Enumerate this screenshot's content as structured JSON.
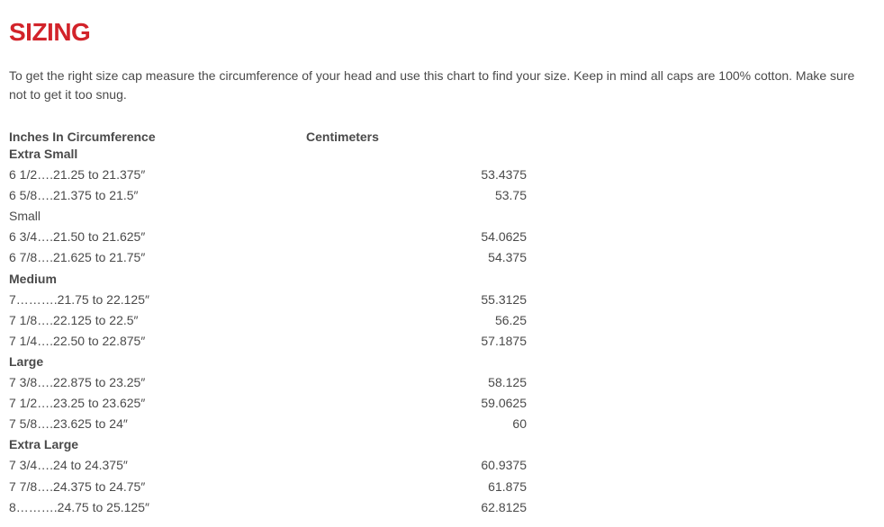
{
  "heading": "SIZING",
  "heading_color": "#d2232a",
  "intro": "To get the right size cap measure the circumference of your head and use this chart to find your size. Keep in mind all caps are 100% cotton. Make sure not to get it too snug.",
  "columns": [
    "Inches In Circumference",
    "Centimeters"
  ],
  "groups": [
    {
      "label": "Extra Small",
      "rows": [
        {
          "in": "6 1/2….21.25 to 21.375″",
          "cm": "53.4375"
        },
        {
          "in": "6 5/8….21.375 to 21.5″",
          "cm": "53.75"
        }
      ]
    },
    {
      "label": "Small",
      "rows": [
        {
          "in": "6 3/4….21.50 to 21.625″",
          "cm": "54.0625"
        },
        {
          "in": "6 7/8….21.625 to 21.75″",
          "cm": "54.375"
        }
      ]
    },
    {
      "label": "Medium",
      "rows": [
        {
          "in": "7……….21.75 to 22.125″",
          "cm": "55.3125"
        },
        {
          "in": "7 1/8….22.125 to 22.5″",
          "cm": "56.25"
        },
        {
          "in": "7 1/4….22.50 to 22.875″",
          "cm": "57.1875"
        }
      ]
    },
    {
      "label": "Large",
      "rows": [
        {
          "in": "7 3/8….22.875 to 23.25″",
          "cm": "58.125"
        },
        {
          "in": "7 1/2….23.25 to 23.625″",
          "cm": "59.0625"
        },
        {
          "in": "7 5/8….23.625 to 24″",
          "cm": "60"
        }
      ]
    },
    {
      "label": "Extra Large",
      "rows": [
        {
          "in": "7 3/4….24 to 24.375″",
          "cm": "60.9375"
        },
        {
          "in": "7 7/8….24.375 to 24.75″",
          "cm": "61.875"
        },
        {
          "in": "8……….24.75 to 25.125″",
          "cm": "62.8125"
        }
      ]
    }
  ]
}
